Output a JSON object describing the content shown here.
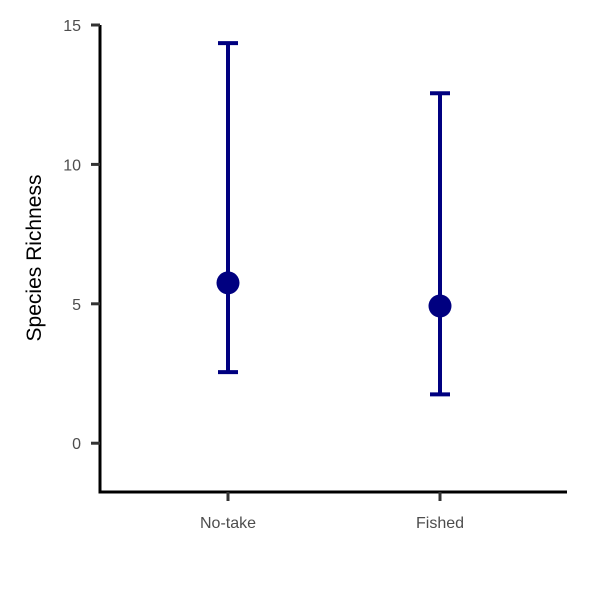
{
  "chart_data": {
    "type": "scatter",
    "title": "",
    "xlabel": "",
    "ylabel": "Species Richness",
    "categories": [
      "No-take",
      "Fished"
    ],
    "series": [
      {
        "values": [
          5.75,
          4.92
        ],
        "error_low": [
          2.55,
          1.75
        ],
        "error_high": [
          14.35,
          12.55
        ]
      }
    ],
    "yticks": [
      0,
      5,
      10,
      15
    ],
    "ylim": [
      -1.75,
      15
    ],
    "grid": false,
    "legend": "none",
    "color": "#000080"
  }
}
